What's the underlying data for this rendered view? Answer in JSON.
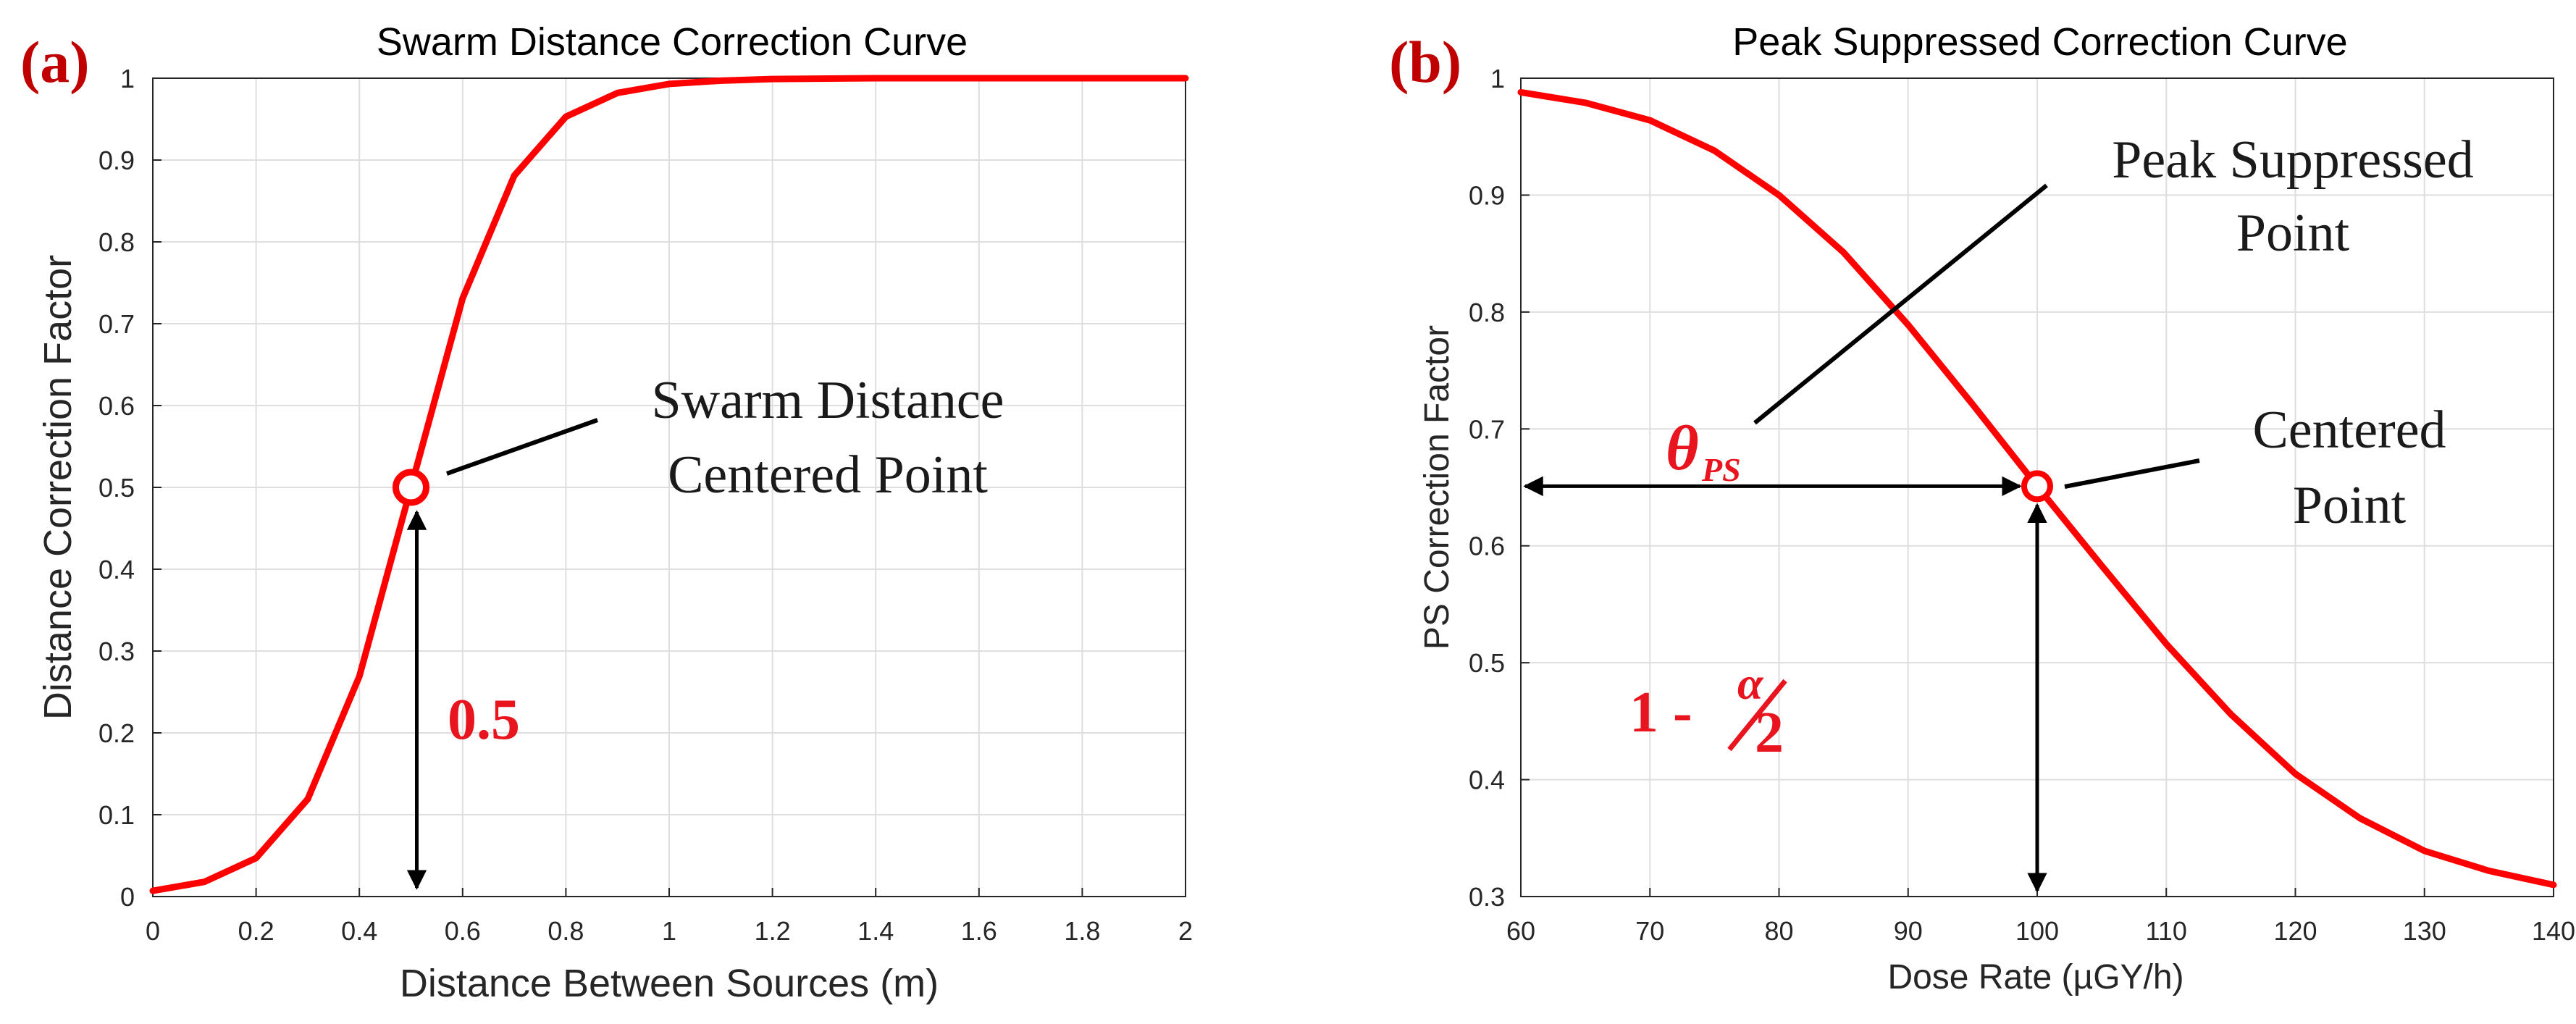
{
  "chart_data": [
    {
      "type": "line",
      "panel_label": "(a)",
      "title": "Swarm Distance Correction Curve",
      "xlabel": "Distance Between Sources (m)",
      "ylabel": "Distance Correction Factor",
      "xlim": [
        0,
        2
      ],
      "ylim": [
        0,
        1
      ],
      "xticks": [
        "0",
        "0.2",
        "0.4",
        "0.6",
        "0.8",
        "1",
        "1.2",
        "1.4",
        "1.6",
        "1.8",
        "2"
      ],
      "yticks": [
        "0",
        "0.1",
        "0.2",
        "0.3",
        "0.4",
        "0.5",
        "0.6",
        "0.7",
        "0.8",
        "0.9",
        "1"
      ],
      "grid": true,
      "series": [
        {
          "name": "correction curve",
          "color": "#ff0000",
          "x": [
            0,
            0.1,
            0.2,
            0.3,
            0.4,
            0.5,
            0.6,
            0.7,
            0.8,
            0.9,
            1.0,
            1.1,
            1.2,
            1.4,
            1.6,
            1.8,
            2.0
          ],
          "y": [
            0.007,
            0.018,
            0.047,
            0.119,
            0.269,
            0.5,
            0.731,
            0.881,
            0.953,
            0.982,
            0.993,
            0.997,
            0.999,
            1.0,
            1.0,
            1.0,
            1.0
          ]
        }
      ],
      "centered_point": {
        "x": 0.5,
        "y": 0.5
      },
      "annotations": {
        "point_label_line1": "Swarm Distance",
        "point_label_line2": "Centered Point",
        "arrow_value": "0.5"
      }
    },
    {
      "type": "line",
      "panel_label": "(b)",
      "title": "Peak Suppressed Correction Curve",
      "xlabel": "Dose Rate (µGY/h)",
      "ylabel": "PS Correction Factor",
      "xlim": [
        60,
        140
      ],
      "ylim": [
        0.3,
        1
      ],
      "xticks": [
        "60",
        "70",
        "80",
        "90",
        "100",
        "110",
        "120",
        "130",
        "140"
      ],
      "yticks": [
        "0.3",
        "0.4",
        "0.5",
        "0.6",
        "0.7",
        "0.8",
        "0.9",
        "1"
      ],
      "grid": true,
      "series": [
        {
          "name": "correction curve",
          "color": "#ff0000",
          "x": [
            60,
            65,
            70,
            75,
            80,
            85,
            90,
            95,
            100,
            105,
            110,
            115,
            120,
            125,
            130,
            135,
            140
          ],
          "y": [
            0.988,
            0.979,
            0.964,
            0.938,
            0.9,
            0.851,
            0.789,
            0.721,
            0.651,
            0.583,
            0.516,
            0.456,
            0.405,
            0.367,
            0.339,
            0.322,
            0.31
          ]
        }
      ],
      "centered_point": {
        "x": 100,
        "y": 0.651
      },
      "annotations": {
        "peak_label_line1": "Peak Suppressed",
        "peak_label_line2": "Point",
        "point_label_line1": "Centered",
        "point_label_line2": "Point",
        "theta_symbol": "θ",
        "theta_subscript": "PS",
        "fraction_prefix": "1 -",
        "fraction_numerator": "α",
        "fraction_denominator": "2"
      }
    }
  ],
  "colors": {
    "curve": "#ff0000",
    "panel_label": "#c00000",
    "annotation_red": "#e8141e",
    "arrow": "#000000",
    "grid": "#dedede",
    "axis": "#262626"
  }
}
